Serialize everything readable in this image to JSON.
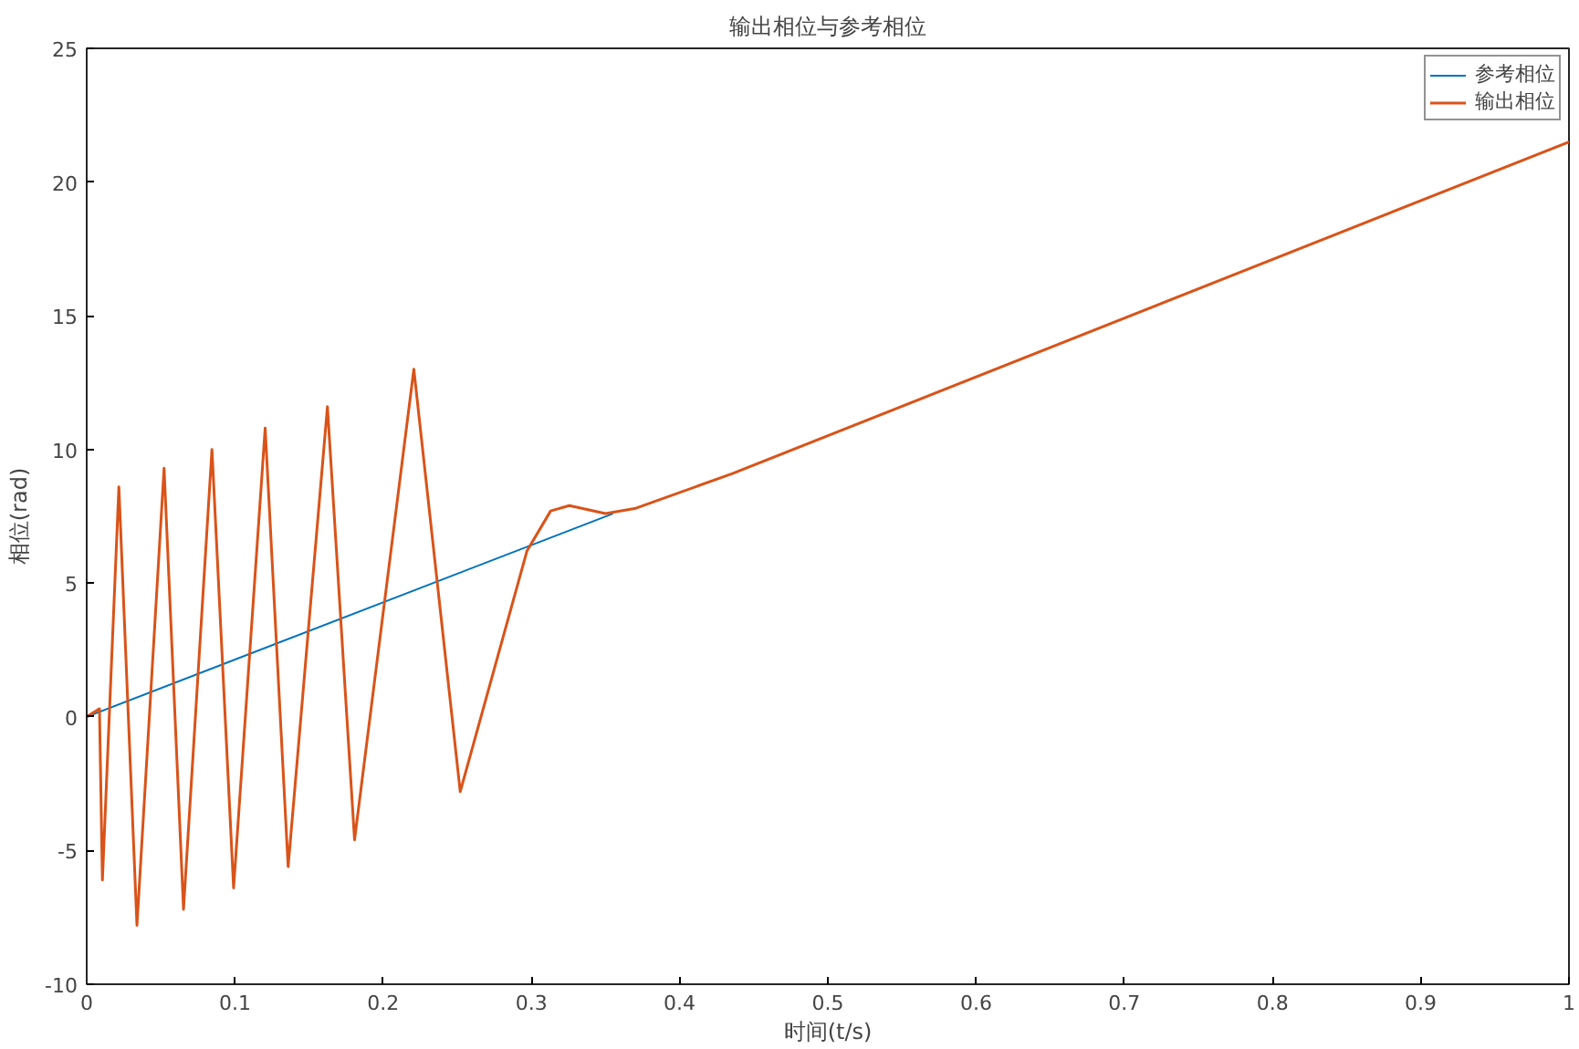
{
  "chart_data": {
    "type": "line",
    "title": "输出相位与参考相位",
    "xlabel": "时间(t/s)",
    "ylabel": "相位(rad)",
    "xlim": [
      0,
      1
    ],
    "ylim": [
      -10,
      25
    ],
    "xticks": [
      0,
      0.1,
      0.2,
      0.3,
      0.4,
      0.5,
      0.6,
      0.7,
      0.8,
      0.9,
      1
    ],
    "yticks": [
      -10,
      -5,
      0,
      5,
      10,
      15,
      20,
      25
    ],
    "grid": false,
    "legend": "top right",
    "line_style": "solid",
    "series": [
      {
        "name": "参考相位",
        "color": "#0072bd",
        "x": [
          0,
          0.355
        ],
        "values": [
          0,
          7.6
        ]
      },
      {
        "name": "输出相位",
        "color": "#d95319",
        "x": [
          0,
          0.0086,
          0.0106,
          0.0217,
          0.0339,
          0.0522,
          0.0653,
          0.0845,
          0.0991,
          0.1204,
          0.1359,
          0.1624,
          0.1807,
          0.2207,
          0.252,
          0.297,
          0.313,
          0.3256,
          0.35,
          0.3705,
          0.4357,
          1
        ],
        "values": [
          0,
          0.3,
          -6.1,
          8.6,
          -7.8,
          9.3,
          -7.2,
          10.0,
          -6.4,
          10.8,
          -5.6,
          11.6,
          -4.6,
          13.0,
          -2.8,
          6.2,
          7.7,
          7.9,
          7.6,
          7.8,
          9.1,
          21.5
        ]
      }
    ]
  }
}
